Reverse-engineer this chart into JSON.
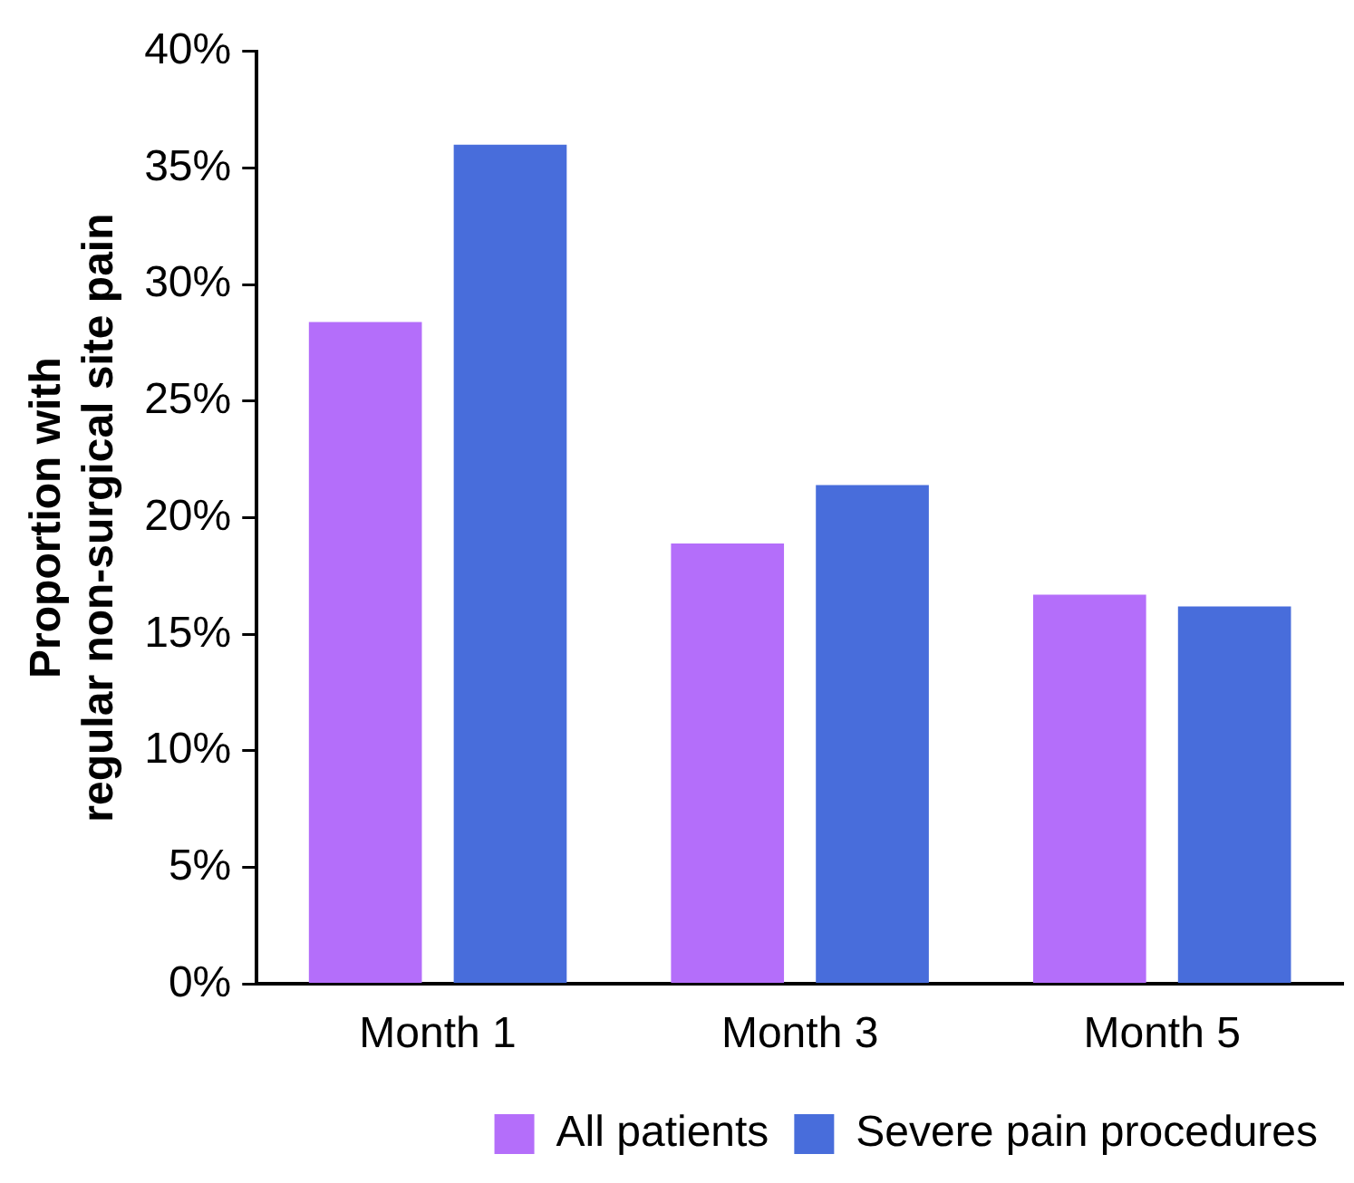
{
  "chart_data": {
    "type": "bar",
    "ylabel": "Proportion with\nregular non-surgical site pain",
    "categories": [
      "Month 1",
      "Month 3",
      "Month 5"
    ],
    "series": [
      {
        "name": "All patients",
        "color": "#b46efa",
        "values": [
          28.4,
          18.9,
          16.7
        ]
      },
      {
        "name": "Severe pain procedures",
        "color": "#486ddb",
        "values": [
          36.0,
          21.4,
          16.2
        ]
      }
    ],
    "ylim": [
      0,
      40
    ],
    "yticks": [
      {
        "value": 0,
        "label": "0%"
      },
      {
        "value": 5,
        "label": "5%"
      },
      {
        "value": 10,
        "label": "10%"
      },
      {
        "value": 15,
        "label": "15%"
      },
      {
        "value": 20,
        "label": "20%"
      },
      {
        "value": 25,
        "label": "25%"
      },
      {
        "value": 30,
        "label": "30%"
      },
      {
        "value": 35,
        "label": "35%"
      },
      {
        "value": 40,
        "label": "40%"
      }
    ],
    "grid": false,
    "legend": "bottom"
  }
}
